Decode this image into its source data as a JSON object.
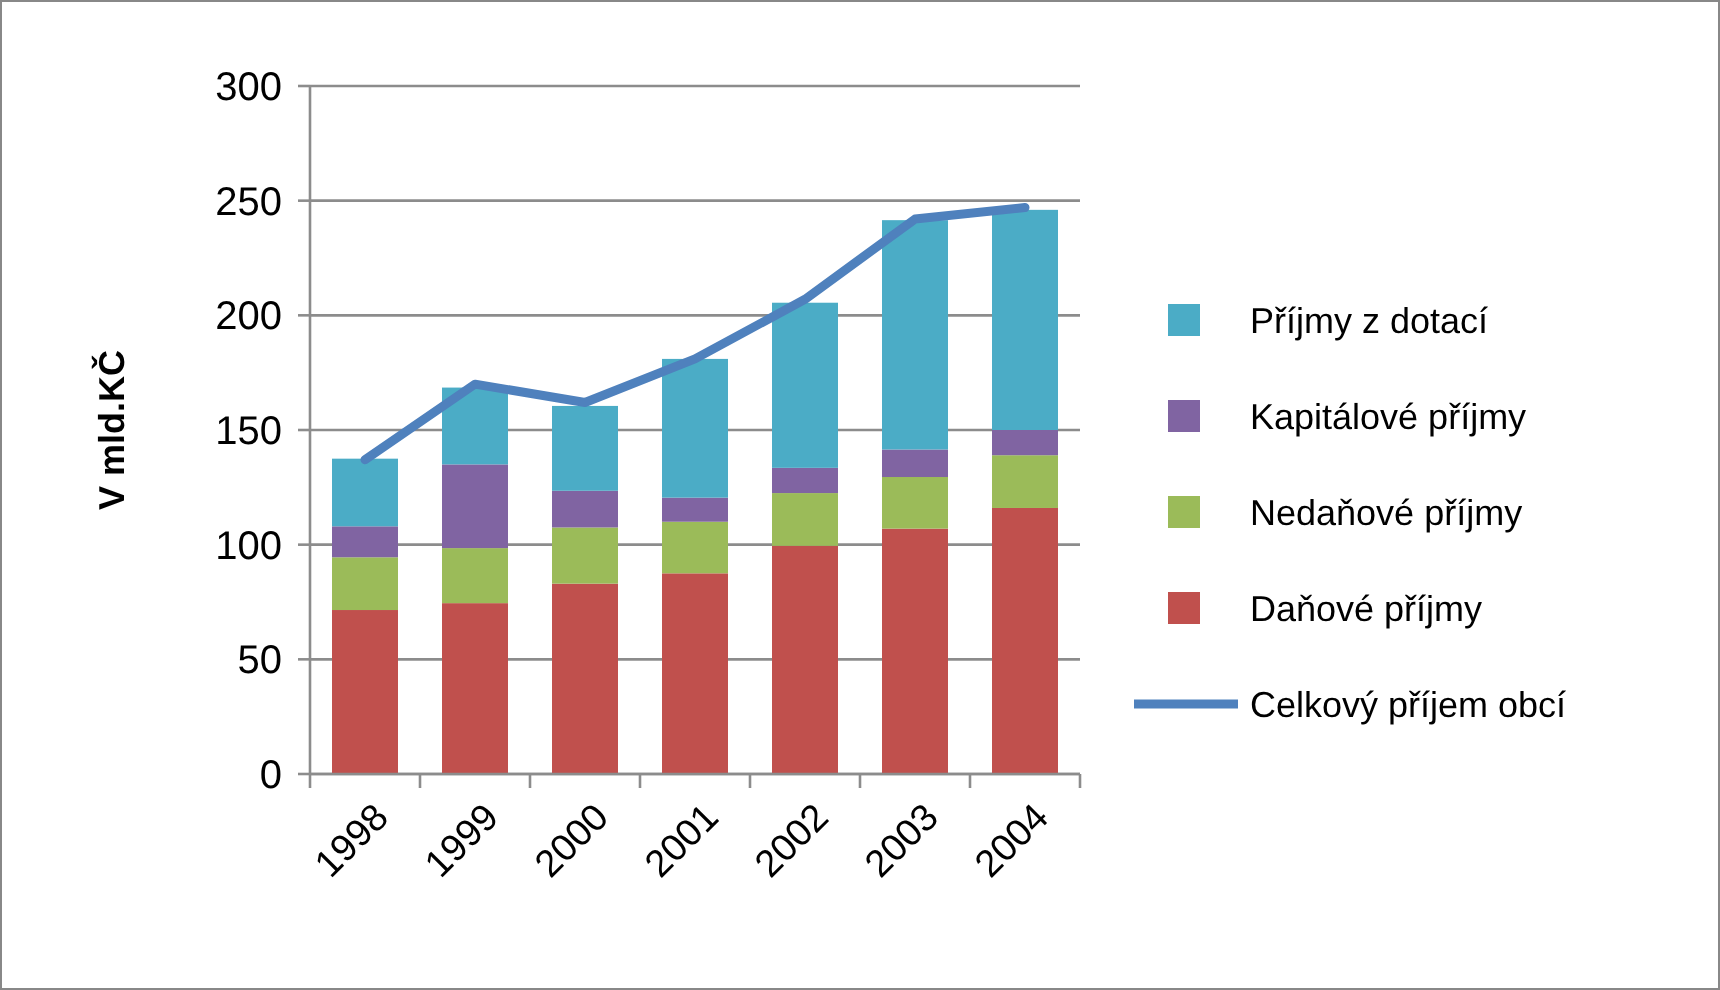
{
  "chart_data": {
    "type": "bar",
    "stacked": true,
    "ylabel": "V mld.KČ",
    "categories": [
      "1998",
      "1999",
      "2000",
      "2001",
      "2002",
      "2003",
      "2004"
    ],
    "series": [
      {
        "name": "Daňové příjmy",
        "color": "#c0504d",
        "values": [
          71.5,
          74.5,
          83,
          87.5,
          99.5,
          107,
          116
        ]
      },
      {
        "name": "Nedaňové příjmy",
        "color": "#9bbb59",
        "values": [
          23,
          24,
          24.5,
          22.5,
          23,
          22.5,
          23
        ]
      },
      {
        "name": "Kapitálové příjmy",
        "color": "#8064a2",
        "values": [
          13.5,
          36.5,
          16,
          10.5,
          11,
          12,
          11
        ]
      },
      {
        "name": "Příjmy z dotací",
        "color": "#4bacc6",
        "values": [
          29.5,
          33.5,
          37,
          60.5,
          72,
          100,
          96
        ]
      },
      {
        "name": "Celkový příjem obcí",
        "type": "line",
        "color": "#4f81bd",
        "values": [
          137,
          170,
          162,
          181,
          207,
          242,
          247
        ]
      }
    ],
    "ylim": [
      0,
      300
    ],
    "yticks": [
      0,
      50,
      100,
      150,
      200,
      250,
      300
    ],
    "grid": "y",
    "legend": "right"
  }
}
